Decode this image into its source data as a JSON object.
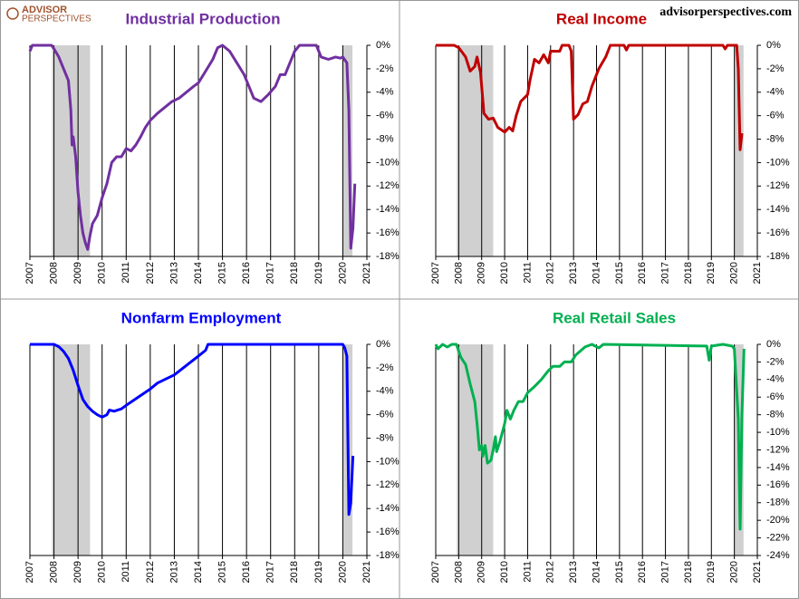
{
  "watermark": {
    "logo_top": "ADVISOR",
    "logo_bottom": "PERSPECTIVES",
    "website": "advisorperspectives.com"
  },
  "chart_data": [
    {
      "type": "line",
      "title": "Industrial Production",
      "color": "#7030a0",
      "grid": "x",
      "xlim": [
        2007,
        2021
      ],
      "xticks": [
        2007,
        2008,
        2009,
        2010,
        2011,
        2012,
        2013,
        2014,
        2015,
        2016,
        2017,
        2018,
        2019,
        2020,
        2021
      ],
      "ylim": [
        -18,
        0
      ],
      "yticks": [
        {
          "value": 0,
          "label": "0%"
        },
        {
          "value": -2,
          "label": "-2%"
        },
        {
          "value": -4,
          "label": "-4%"
        },
        {
          "value": -6,
          "label": "-6%"
        },
        {
          "value": -8,
          "label": "-8%"
        },
        {
          "value": -10,
          "label": "-10%"
        },
        {
          "value": -12,
          "label": "-12%"
        },
        {
          "value": -14,
          "label": "-14%"
        },
        {
          "value": -16,
          "label": "-16%"
        },
        {
          "value": -18,
          "label": "-18%"
        }
      ],
      "shaded_ranges": [
        [
          2007.92,
          2009.5
        ],
        [
          2020.0,
          2020.4
        ]
      ],
      "x": [
        2007.0,
        2007.1,
        2007.5,
        2007.9,
        2008.0,
        2008.2,
        2008.4,
        2008.6,
        2008.7,
        2008.75,
        2008.8,
        2008.9,
        2009.0,
        2009.1,
        2009.2,
        2009.3,
        2009.4,
        2009.5,
        2009.6,
        2009.8,
        2010.0,
        2010.2,
        2010.4,
        2010.6,
        2010.8,
        2011.0,
        2011.2,
        2011.4,
        2011.6,
        2011.8,
        2012.0,
        2012.3,
        2012.6,
        2012.9,
        2013.2,
        2013.5,
        2013.8,
        2014.0,
        2014.3,
        2014.6,
        2014.8,
        2015.0,
        2015.3,
        2015.6,
        2015.9,
        2016.1,
        2016.3,
        2016.6,
        2016.9,
        2017.2,
        2017.4,
        2017.6,
        2017.8,
        2018.0,
        2018.2,
        2018.6,
        2018.9,
        2019.1,
        2019.4,
        2019.7,
        2019.9,
        2020.0,
        2020.17,
        2020.25,
        2020.33,
        2020.42,
        2020.5
      ],
      "values": [
        -0.5,
        0,
        0,
        0,
        -0.3,
        -1,
        -2,
        -3,
        -5.5,
        -8.5,
        -7.8,
        -9.5,
        -12.5,
        -14.5,
        -16,
        -16.8,
        -17.4,
        -16.2,
        -15.2,
        -14.5,
        -13,
        -11.8,
        -10,
        -9.5,
        -9.5,
        -8.8,
        -9,
        -8.5,
        -7.8,
        -7,
        -6.4,
        -5.8,
        -5.3,
        -4.8,
        -4.5,
        -4,
        -3.5,
        -3.2,
        -2.2,
        -1.2,
        -0.2,
        0,
        -0.5,
        -1.5,
        -2.5,
        -3.5,
        -4.5,
        -4.8,
        -4.2,
        -3.5,
        -2.5,
        -2.5,
        -1.5,
        -0.5,
        0,
        0,
        0,
        -1,
        -1.2,
        -1,
        -1.1,
        -1,
        -1.5,
        -5.5,
        -17.3,
        -15.6,
        -11.8
      ]
    },
    {
      "type": "line",
      "title": "Real Income",
      "color": "#c00000",
      "grid": "x",
      "xlim": [
        2007,
        2021
      ],
      "xticks": [
        2007,
        2008,
        2009,
        2010,
        2011,
        2012,
        2013,
        2014,
        2015,
        2016,
        2017,
        2018,
        2019,
        2020,
        2021
      ],
      "ylim": [
        -18,
        0
      ],
      "yticks": [
        {
          "value": 0,
          "label": "0%"
        },
        {
          "value": -2,
          "label": "-2%"
        },
        {
          "value": -4,
          "label": "-4%"
        },
        {
          "value": -6,
          "label": "-6%"
        },
        {
          "value": -8,
          "label": "-8%"
        },
        {
          "value": -10,
          "label": "-10%"
        },
        {
          "value": -12,
          "label": "-12%"
        },
        {
          "value": -14,
          "label": "-14%"
        },
        {
          "value": -16,
          "label": "-16%"
        },
        {
          "value": -18,
          "label": "-18%"
        }
      ],
      "shaded_ranges": [
        [
          2007.92,
          2009.5
        ],
        [
          2020.0,
          2020.4
        ]
      ],
      "x": [
        2007.0,
        2007.8,
        2008.0,
        2008.3,
        2008.5,
        2008.7,
        2008.8,
        2008.95,
        2009.1,
        2009.3,
        2009.5,
        2009.7,
        2010.0,
        2010.2,
        2010.35,
        2010.5,
        2010.7,
        2011.0,
        2011.1,
        2011.3,
        2011.5,
        2011.7,
        2011.9,
        2012.0,
        2012.4,
        2012.5,
        2012.8,
        2012.9,
        2013.0,
        2013.2,
        2013.4,
        2013.6,
        2013.8,
        2014.1,
        2014.4,
        2014.6,
        2015.2,
        2015.3,
        2015.4,
        2019.5,
        2019.6,
        2019.7,
        2020.0,
        2020.1,
        2020.17,
        2020.25,
        2020.33
      ],
      "values": [
        0,
        0,
        -0.2,
        -1,
        -2.2,
        -1.8,
        -1,
        -2.3,
        -5.8,
        -6.3,
        -6.2,
        -7,
        -7.4,
        -7,
        -7.3,
        -6,
        -4.8,
        -4.2,
        -3,
        -1.2,
        -1.5,
        -0.8,
        -1.5,
        -0.5,
        -0.5,
        0,
        0,
        -0.5,
        -6.3,
        -5.9,
        -5,
        -4.8,
        -3.5,
        -2,
        -1,
        0,
        0,
        -0.4,
        0,
        0,
        -0.3,
        0,
        0,
        0,
        -2,
        -8.9,
        -7.5
      ]
    },
    {
      "type": "line",
      "title": "Nonfarm Employment",
      "color": "#0000ff",
      "grid": "x",
      "xlim": [
        2007,
        2021
      ],
      "xticks": [
        2007,
        2008,
        2009,
        2010,
        2011,
        2012,
        2013,
        2014,
        2015,
        2016,
        2017,
        2018,
        2019,
        2020,
        2021
      ],
      "ylim": [
        -18,
        0
      ],
      "yticks": [
        {
          "value": 0,
          "label": "0%"
        },
        {
          "value": -2,
          "label": "-2%"
        },
        {
          "value": -4,
          "label": "-4%"
        },
        {
          "value": -6,
          "label": "-6%"
        },
        {
          "value": -8,
          "label": "-8%"
        },
        {
          "value": -10,
          "label": "-10%"
        },
        {
          "value": -12,
          "label": "-12%"
        },
        {
          "value": -14,
          "label": "-14%"
        },
        {
          "value": -16,
          "label": "-16%"
        },
        {
          "value": -18,
          "label": "-18%"
        }
      ],
      "shaded_ranges": [
        [
          2007.92,
          2009.5
        ],
        [
          2020.0,
          2020.4
        ]
      ],
      "x": [
        2007.0,
        2008.0,
        2008.2,
        2008.4,
        2008.6,
        2008.8,
        2009.0,
        2009.2,
        2009.4,
        2009.6,
        2009.8,
        2010.0,
        2010.2,
        2010.3,
        2010.5,
        2010.8,
        2011.0,
        2011.5,
        2012.0,
        2012.3,
        2013.0,
        2013.5,
        2014.0,
        2014.3,
        2014.4,
        2020.0,
        2020.08,
        2020.17,
        2020.25,
        2020.33,
        2020.42
      ],
      "values": [
        0,
        0,
        -0.2,
        -0.6,
        -1.2,
        -2.2,
        -3.5,
        -4.7,
        -5.3,
        -5.7,
        -6,
        -6.2,
        -6,
        -5.6,
        -5.7,
        -5.5,
        -5.2,
        -4.5,
        -3.8,
        -3.3,
        -2.6,
        -1.8,
        -1,
        -0.5,
        0,
        0,
        -0.3,
        -1,
        -14.5,
        -13.5,
        -9.5
      ]
    },
    {
      "type": "line",
      "title": "Real Retail Sales",
      "color": "#00b050",
      "grid": "x",
      "xlim": [
        2007,
        2021
      ],
      "xticks": [
        2007,
        2008,
        2009,
        2010,
        2011,
        2012,
        2013,
        2014,
        2015,
        2016,
        2017,
        2018,
        2019,
        2020,
        2021
      ],
      "ylim": [
        -24,
        0
      ],
      "yticks": [
        {
          "value": 0,
          "label": "0%"
        },
        {
          "value": -2,
          "label": "-2%"
        },
        {
          "value": -4,
          "label": "-4%"
        },
        {
          "value": -6,
          "label": "-6%"
        },
        {
          "value": -8,
          "label": "-8%"
        },
        {
          "value": -10,
          "label": "-10%"
        },
        {
          "value": -12,
          "label": "-12%"
        },
        {
          "value": -14,
          "label": "-14%"
        },
        {
          "value": -16,
          "label": "-16%"
        },
        {
          "value": -18,
          "label": "-18%"
        },
        {
          "value": -20,
          "label": "-20%"
        },
        {
          "value": -22,
          "label": "-22%"
        },
        {
          "value": -24,
          "label": "-24%"
        }
      ],
      "shaded_ranges": [
        [
          2007.92,
          2009.5
        ],
        [
          2020.0,
          2020.4
        ]
      ],
      "x": [
        2007.0,
        2007.1,
        2007.3,
        2007.5,
        2007.7,
        2007.9,
        2008.1,
        2008.3,
        2008.5,
        2008.7,
        2008.8,
        2008.9,
        2009.0,
        2009.05,
        2009.15,
        2009.25,
        2009.4,
        2009.5,
        2009.6,
        2009.65,
        2009.8,
        2010.0,
        2010.1,
        2010.25,
        2010.4,
        2010.6,
        2010.8,
        2011.0,
        2011.3,
        2011.6,
        2011.9,
        2012.1,
        2012.4,
        2012.6,
        2012.9,
        2013.1,
        2013.5,
        2013.8,
        2014.1,
        2014.3,
        2018.8,
        2018.9,
        2019.0,
        2019.5,
        2019.9,
        2020.0,
        2020.17,
        2020.25,
        2020.33,
        2020.42
      ],
      "values": [
        0,
        -0.5,
        0,
        -0.3,
        0,
        0,
        -1.5,
        -2.3,
        -4.5,
        -6.5,
        -9,
        -12,
        -11.5,
        -12.7,
        -11.5,
        -13.5,
        -13.2,
        -12,
        -10.5,
        -12.2,
        -11,
        -9,
        -7.5,
        -8.5,
        -7.5,
        -6.5,
        -6.5,
        -5.5,
        -4.8,
        -4,
        -3,
        -2.5,
        -2.5,
        -2,
        -2,
        -1.2,
        -0.3,
        0,
        -0.4,
        0,
        -0.2,
        -1.8,
        -0.2,
        0,
        -0.2,
        -0.5,
        -8.5,
        -21,
        -8,
        -0.5
      ]
    }
  ]
}
